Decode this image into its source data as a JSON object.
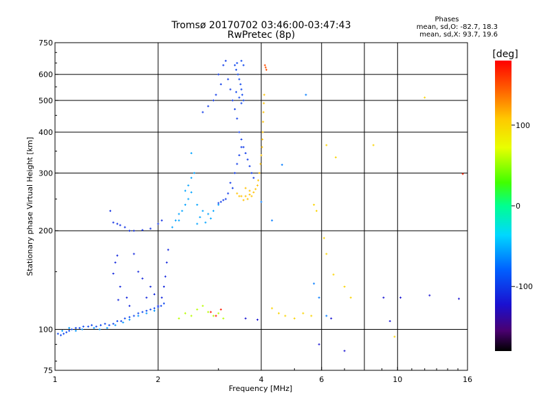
{
  "chart_data": {
    "type": "scatter",
    "title": "Tromsø 20170702 03:46:00-03:47:43",
    "subtitle": "RwPretec (8p)",
    "info": {
      "heading": "Phases",
      "line1": "mean, sd,O: -82.7, 18.3",
      "line2": "mean, sd,X:  93.7, 19.6"
    },
    "xlabel": "Frequency [MHz]",
    "ylabel": "Stationary phase Virtual Height [km]",
    "x_scale": "log",
    "y_scale": "log",
    "xlim": [
      1,
      16
    ],
    "ylim": [
      75,
      750
    ],
    "x_ticks": [
      1,
      2,
      4,
      6,
      10,
      16
    ],
    "x_tick_labels": [
      "1",
      "2",
      "4",
      "6",
      "10",
      "16"
    ],
    "x_grid": [
      2,
      4,
      6,
      8,
      10
    ],
    "y_ticks": [
      75,
      100,
      200,
      300,
      400,
      500,
      600,
      750
    ],
    "y_tick_labels": [
      "75",
      "100",
      "200",
      "300",
      "400",
      "500",
      "600",
      "750"
    ],
    "y_grid": [
      100,
      200,
      300,
      400,
      500,
      600
    ],
    "grid": true,
    "colorbar": {
      "label": "[deg]",
      "min": -180,
      "max": 180,
      "ticks": [
        100,
        0,
        -100
      ],
      "tick_labels": [
        "100",
        "0",
        "-100"
      ]
    },
    "traces": [
      {
        "phase": -95,
        "points": [
          [
            1.02,
            97
          ],
          [
            1.04,
            96
          ],
          [
            1.06,
            97
          ],
          [
            1.08,
            98
          ],
          [
            1.1,
            99
          ],
          [
            1.12,
            100
          ],
          [
            1.15,
            101
          ],
          [
            1.18,
            101
          ],
          [
            1.21,
            102
          ],
          [
            1.25,
            102
          ],
          [
            1.28,
            103
          ],
          [
            1.32,
            102
          ],
          [
            1.36,
            103
          ],
          [
            1.4,
            104
          ],
          [
            1.44,
            103
          ],
          [
            1.48,
            104
          ],
          [
            1.52,
            106
          ],
          [
            1.56,
            106
          ],
          [
            1.6,
            108
          ],
          [
            1.65,
            109
          ],
          [
            1.7,
            110
          ],
          [
            1.75,
            112
          ],
          [
            1.8,
            113
          ],
          [
            1.85,
            114
          ],
          [
            1.9,
            115
          ],
          [
            1.95,
            116
          ],
          [
            2.0,
            117
          ],
          [
            2.04,
            118
          ],
          [
            2.08,
            120
          ]
        ]
      },
      {
        "phase": -60,
        "points": [
          [
            1.05,
            99
          ],
          [
            1.1,
            101
          ],
          [
            1.15,
            99
          ],
          [
            1.2,
            100
          ],
          [
            1.3,
            101
          ],
          [
            1.35,
            100
          ],
          [
            1.42,
            101
          ],
          [
            1.5,
            103
          ],
          [
            1.58,
            105
          ],
          [
            1.65,
            107
          ],
          [
            1.75,
            110
          ],
          [
            1.85,
            112
          ],
          [
            1.95,
            114
          ]
        ]
      },
      {
        "phase": -110,
        "points": [
          [
            1.48,
            148
          ],
          [
            1.5,
            160
          ],
          [
            1.52,
            168
          ],
          [
            1.55,
            135
          ],
          [
            1.53,
            123
          ],
          [
            1.62,
            125
          ],
          [
            1.65,
            118
          ],
          [
            1.7,
            170
          ],
          [
            1.75,
            150
          ],
          [
            1.8,
            143
          ],
          [
            1.85,
            125
          ],
          [
            1.9,
            135
          ],
          [
            1.95,
            128
          ],
          [
            2.0,
            118
          ],
          [
            2.05,
            125
          ],
          [
            2.08,
            135
          ],
          [
            2.1,
            145
          ],
          [
            2.12,
            160
          ],
          [
            2.14,
            175
          ]
        ]
      },
      {
        "phase": -105,
        "points": [
          [
            1.45,
            230
          ],
          [
            1.48,
            212
          ],
          [
            1.52,
            210
          ],
          [
            1.55,
            208
          ],
          [
            1.6,
            205
          ],
          [
            1.65,
            200
          ],
          [
            1.7,
            200
          ],
          [
            1.8,
            201
          ],
          [
            1.9,
            203
          ],
          [
            2.0,
            210
          ],
          [
            2.05,
            215
          ]
        ]
      },
      {
        "phase": -55,
        "points": [
          [
            2.2,
            205
          ],
          [
            2.25,
            215
          ],
          [
            2.3,
            225
          ],
          [
            2.35,
            230
          ],
          [
            2.4,
            240
          ],
          [
            2.45,
            250
          ],
          [
            2.5,
            262
          ],
          [
            2.45,
            275
          ],
          [
            2.5,
            290
          ],
          [
            2.55,
            300
          ],
          [
            2.6,
            240
          ],
          [
            2.7,
            230
          ],
          [
            2.8,
            225
          ],
          [
            2.9,
            230
          ],
          [
            3.0,
            240
          ],
          [
            2.6,
            210
          ],
          [
            2.65,
            220
          ],
          [
            2.75,
            212
          ],
          [
            2.85,
            218
          ],
          [
            2.5,
            345
          ],
          [
            2.4,
            265
          ],
          [
            2.3,
            215
          ]
        ]
      },
      {
        "phase": -100,
        "points": [
          [
            2.7,
            460
          ],
          [
            2.8,
            480
          ],
          [
            2.9,
            500
          ],
          [
            3.0,
            600
          ],
          [
            3.05,
            560
          ],
          [
            2.95,
            520
          ],
          [
            3.1,
            640
          ],
          [
            3.15,
            660
          ],
          [
            3.2,
            580
          ],
          [
            3.25,
            540
          ],
          [
            3.3,
            500
          ],
          [
            3.35,
            470
          ],
          [
            3.4,
            440
          ],
          [
            3.45,
            400
          ],
          [
            3.5,
            380
          ],
          [
            3.55,
            360
          ],
          [
            3.6,
            345
          ],
          [
            3.65,
            330
          ],
          [
            3.7,
            315
          ],
          [
            3.75,
            300
          ],
          [
            3.8,
            290
          ],
          [
            3.3,
            270
          ],
          [
            3.2,
            260
          ],
          [
            3.15,
            250
          ],
          [
            3.1,
            248
          ],
          [
            3.05,
            245
          ],
          [
            3.0,
            243
          ],
          [
            3.25,
            280
          ],
          [
            3.35,
            300
          ],
          [
            3.4,
            320
          ],
          [
            3.45,
            340
          ],
          [
            3.5,
            360
          ]
        ]
      },
      {
        "phase": -95,
        "points": [
          [
            3.35,
            640
          ],
          [
            3.38,
            620
          ],
          [
            3.42,
            600
          ],
          [
            3.45,
            580
          ],
          [
            3.48,
            560
          ],
          [
            3.5,
            540
          ],
          [
            3.52,
            520
          ],
          [
            3.55,
            500
          ],
          [
            3.4,
            650
          ],
          [
            3.5,
            660
          ],
          [
            3.55,
            640
          ],
          [
            3.45,
            510
          ],
          [
            3.5,
            490
          ],
          [
            3.38,
            530
          ]
        ]
      },
      {
        "phase": 110,
        "points": [
          [
            3.4,
            260
          ],
          [
            3.45,
            255
          ],
          [
            3.5,
            255
          ],
          [
            3.6,
            255
          ],
          [
            3.7,
            258
          ],
          [
            3.8,
            262
          ],
          [
            3.85,
            268
          ],
          [
            3.9,
            275
          ],
          [
            3.92,
            285
          ],
          [
            3.95,
            300
          ],
          [
            3.98,
            320
          ],
          [
            4.0,
            340
          ],
          [
            4.02,
            360
          ],
          [
            4.03,
            380
          ],
          [
            4.04,
            400
          ],
          [
            4.05,
            430
          ],
          [
            4.06,
            460
          ],
          [
            4.07,
            490
          ],
          [
            4.08,
            520
          ],
          [
            3.6,
            270
          ],
          [
            3.7,
            265
          ],
          [
            3.55,
            248
          ],
          [
            3.65,
            250
          ],
          [
            3.75,
            255
          ]
        ]
      },
      {
        "phase": 150,
        "points": [
          [
            4.1,
            640
          ],
          [
            4.12,
            630
          ],
          [
            4.14,
            620
          ]
        ]
      },
      {
        "phase": 60,
        "points": [
          [
            2.3,
            108
          ],
          [
            2.4,
            112
          ],
          [
            2.5,
            110
          ],
          [
            2.6,
            115
          ],
          [
            2.7,
            118
          ],
          [
            2.8,
            113
          ],
          [
            2.9,
            110
          ],
          [
            3.0,
            112
          ],
          [
            3.1,
            108
          ]
        ]
      },
      {
        "phase": 100,
        "points": [
          [
            4.3,
            116
          ],
          [
            4.5,
            112
          ],
          [
            4.7,
            110
          ],
          [
            5.0,
            108
          ],
          [
            5.3,
            112
          ],
          [
            5.6,
            110
          ],
          [
            6.1,
            190
          ],
          [
            6.2,
            170
          ],
          [
            6.5,
            147
          ],
          [
            7.0,
            135
          ],
          [
            7.3,
            125
          ],
          [
            5.7,
            240
          ],
          [
            5.8,
            230
          ],
          [
            6.2,
            365
          ],
          [
            6.6,
            335
          ],
          [
            8.5,
            365
          ],
          [
            12.0,
            510
          ],
          [
            9.8,
            95
          ]
        ]
      },
      {
        "phase": -70,
        "points": [
          [
            4.0,
            245
          ],
          [
            4.3,
            215
          ],
          [
            4.6,
            318
          ],
          [
            5.4,
            520
          ],
          [
            5.7,
            138
          ],
          [
            5.9,
            125
          ],
          [
            6.2,
            110
          ]
        ]
      },
      {
        "phase": -120,
        "points": [
          [
            5.9,
            90
          ],
          [
            6.4,
            108
          ],
          [
            7.0,
            86
          ],
          [
            9.1,
            125
          ],
          [
            9.5,
            106
          ],
          [
            10.2,
            125
          ],
          [
            12.4,
            127
          ],
          [
            15.1,
            124
          ],
          [
            3.9,
            107
          ],
          [
            3.6,
            108
          ]
        ]
      },
      {
        "phase": 170,
        "points": [
          [
            2.85,
            113
          ],
          [
            2.95,
            110
          ],
          [
            3.05,
            115
          ],
          [
            15.5,
            298
          ]
        ]
      }
    ]
  }
}
